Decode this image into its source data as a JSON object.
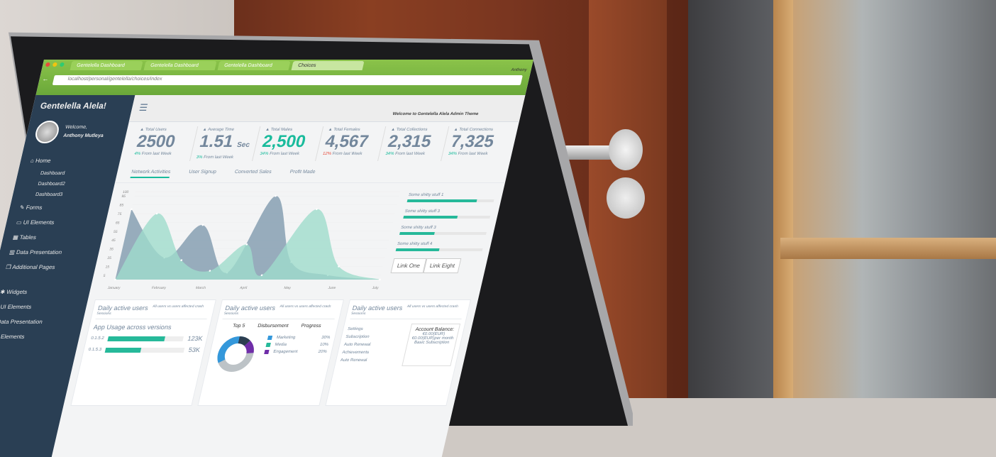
{
  "browser": {
    "tabs": [
      "Gentelella Dashboard",
      "Gentelella Dashboard",
      "Gentelella Dashboard",
      "Choices"
    ],
    "url": "localhost/personal/gentelella/choices/index",
    "user": "Anthony"
  },
  "sidebar": {
    "brand": "Gentelella Alela!",
    "welcome": "Welcome,",
    "user_name": "Anthony Mutleya",
    "items": [
      {
        "label": "Home",
        "icon": "home-icon"
      },
      {
        "label": "Dashboard",
        "sub": true
      },
      {
        "label": "Dashboard2",
        "sub": true
      },
      {
        "label": "Dashboard3",
        "sub": true
      },
      {
        "label": "Forms",
        "icon": "edit-icon"
      },
      {
        "label": "UI Elements",
        "icon": "desktop-icon"
      },
      {
        "label": "Tables",
        "icon": "table-icon"
      },
      {
        "label": "Data Presentation",
        "icon": "chart-icon"
      },
      {
        "label": "Additional Pages",
        "icon": "clone-icon"
      },
      {
        "label": "Widgets",
        "icon": "bug-icon"
      },
      {
        "label": "UI Elements",
        "icon": "windows-icon"
      },
      {
        "label": "Data Presentation",
        "icon": "sitemap-icon"
      },
      {
        "label": "UI Elements",
        "icon": "laptop-icon"
      }
    ]
  },
  "topnav": {
    "welcome": "Welcome to Gentelella Alela Admin Theme"
  },
  "tiles": [
    {
      "label": "Total Users",
      "value": "2500",
      "change": "4%",
      "suffix": " From last Week",
      "color": "default"
    },
    {
      "label": "Average Time",
      "value": "1.51",
      "unit": "Sec",
      "change": "3%",
      "suffix": " From last Week",
      "color": "default"
    },
    {
      "label": "Total Males",
      "value": "2,500",
      "change": "34%",
      "suffix": " From last Week",
      "color": "green"
    },
    {
      "label": "Total Females",
      "value": "4,567",
      "change": "12%",
      "suffix": " From last Week",
      "color": "default",
      "negative": true
    },
    {
      "label": "Total Collections",
      "value": "2,315",
      "change": "34%",
      "suffix": " From last Week",
      "color": "default"
    },
    {
      "label": "Total Connections",
      "value": "7,325",
      "change": "34%",
      "suffix": " From last Week",
      "color": "default"
    }
  ],
  "chart_tabs": [
    "Network Activities",
    "User Signup",
    "Converted Sales",
    "Profit Made"
  ],
  "chart_data": {
    "type": "area",
    "categories": [
      "January",
      "February",
      "March",
      "April",
      "May",
      "June",
      "July"
    ],
    "yticks": [
      5,
      15,
      25,
      35,
      45,
      55,
      65,
      75,
      85,
      95,
      100
    ],
    "ylim": [
      0,
      100
    ],
    "series": [
      {
        "color": "#7f9aae",
        "points": [
          [
            0,
            80
          ],
          [
            1,
            25
          ],
          [
            1.7,
            62
          ],
          [
            2.5,
            8
          ],
          [
            3.2,
            95
          ],
          [
            3.9,
            20
          ],
          [
            4.8,
            5
          ],
          [
            6,
            0
          ]
        ]
      },
      {
        "color": "#9fdccc",
        "points": [
          [
            0,
            0
          ],
          [
            0.6,
            75
          ],
          [
            1.4,
            22
          ],
          [
            2.1,
            10
          ],
          [
            2.8,
            40
          ],
          [
            3.3,
            5
          ],
          [
            4.2,
            80
          ],
          [
            5,
            15
          ],
          [
            6,
            0
          ]
        ]
      }
    ]
  },
  "progress": [
    {
      "label": "Some shitty stuff 1",
      "value": 0.8
    },
    {
      "label": "Some shitty stuff 3",
      "value": 0.62
    },
    {
      "label": "Some shitty stuff 3",
      "value": 0.4
    },
    {
      "label": "Some shitty stuff 4",
      "value": 0.5
    }
  ],
  "links": [
    "Link One",
    "Link Eight"
  ],
  "panels": [
    {
      "title": "Daily active users",
      "subtitle": "All users vs users affected crash",
      "sub": "Sessions",
      "heading": "App Usage across versions",
      "rows": [
        {
          "label": "0.1.5.2",
          "value": "123K",
          "fill": 0.75
        },
        {
          "label": "0.1.5.3",
          "value": "53K",
          "fill": 0.45
        }
      ]
    },
    {
      "title": "Daily active users",
      "subtitle": "All users vs users affected crash",
      "sub": "Sessions",
      "cols": [
        "Top 5",
        "Disbursement",
        "Progress"
      ],
      "legend": [
        {
          "label": "Marketing",
          "value": "30%",
          "color": "#3498db"
        },
        {
          "label": "Media",
          "value": "10%",
          "color": "#26b99a"
        },
        {
          "label": "Engagement",
          "value": "20%",
          "color": "#6f2da8"
        }
      ]
    },
    {
      "title": "Daily active users",
      "subtitle": "All users vs users affected crash",
      "sub": "Sessions",
      "list": [
        "Settings",
        "Subscription",
        "Auto Renewal",
        "Achievements",
        "Auto Renewal"
      ],
      "account": {
        "title": "Account Balance:",
        "line1": "€0.00(EUR)",
        "line2": "€0.00(EUR)per month",
        "line3": "Basic Subscription"
      }
    }
  ]
}
